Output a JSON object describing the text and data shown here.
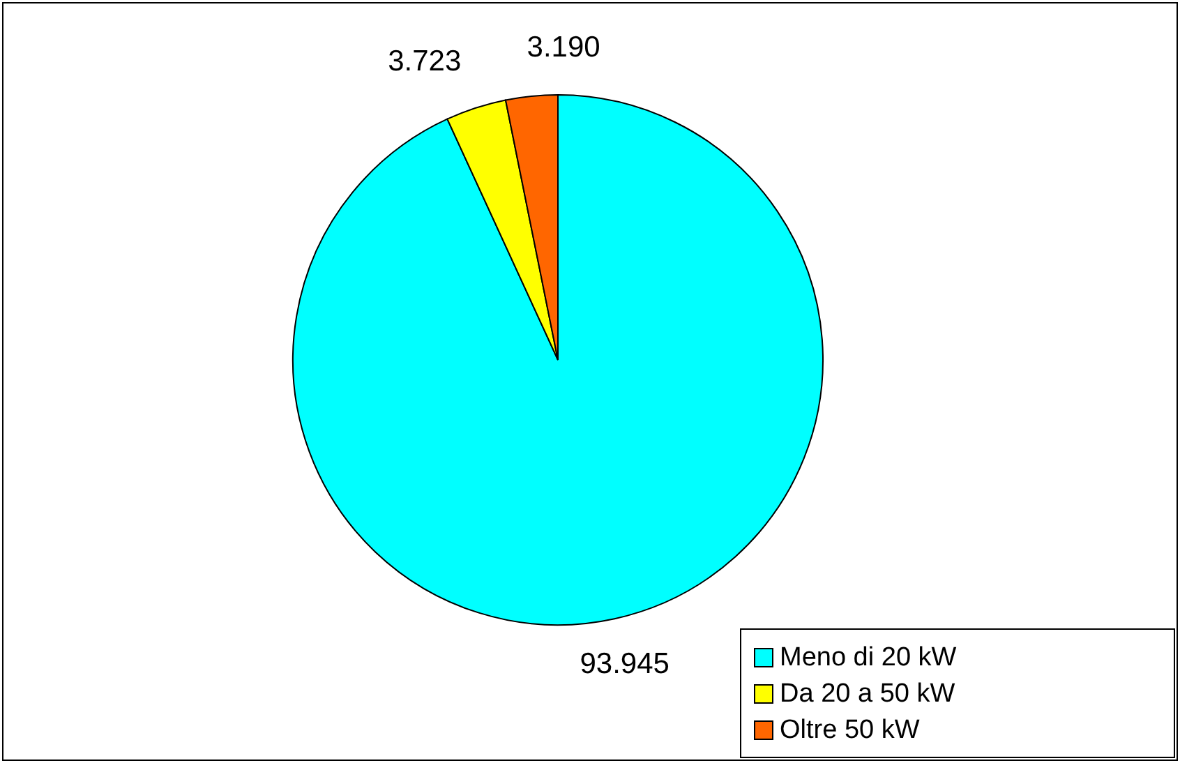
{
  "chart_data": {
    "type": "pie",
    "categories": [
      "Meno di 20 kW",
      "Da 20 a 50 kW",
      "Oltre 50 kW"
    ],
    "values": [
      93945,
      3723,
      3190
    ],
    "value_labels": [
      "93.945",
      "3.723",
      "3.190"
    ],
    "colors": [
      "#00ffff",
      "#ffff00",
      "#ff6600"
    ],
    "legend": "bottom right"
  }
}
